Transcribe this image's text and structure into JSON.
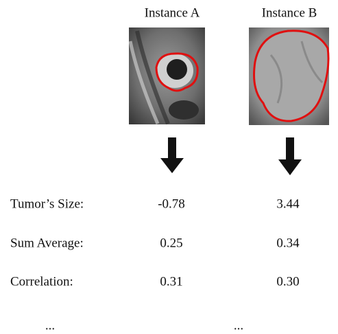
{
  "instances": [
    {
      "label": "Instance A"
    },
    {
      "label": "Instance B"
    }
  ],
  "table": {
    "rows": [
      [
        "Tumor’s Size:",
        "-0.78",
        "3.44"
      ],
      [
        "Sum Average:",
        "0.25",
        "0.34"
      ],
      [
        "Correlation:",
        "0.31",
        "0.30"
      ]
    ]
  },
  "ellipses": [
    "...",
    "..."
  ]
}
